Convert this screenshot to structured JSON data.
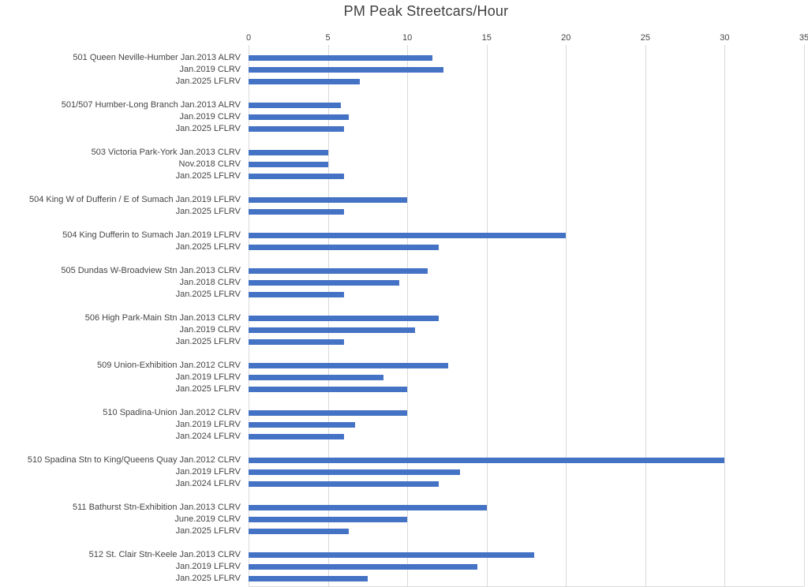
{
  "chart_data": {
    "type": "bar",
    "orientation": "horizontal",
    "title": "PM Peak Streetcars/Hour",
    "xlabel": "",
    "ylabel": "",
    "xlim": [
      0,
      35
    ],
    "xticks": [
      0,
      5,
      10,
      15,
      20,
      25,
      30,
      35
    ],
    "grid": true,
    "legend": "none",
    "bar_color": "#4472C4",
    "gridline_color": "#D9D9D9",
    "text_color": "#444444",
    "groups": [
      {
        "route": "501 Queen Neville-Humber",
        "bars": [
          {
            "label": "501 Queen Neville-Humber Jan.2013 ALRV",
            "value": 11.6
          },
          {
            "label": "Jan.2019 CLRV",
            "value": 12.3
          },
          {
            "label": "Jan.2025 LFLRV",
            "value": 7
          }
        ]
      },
      {
        "route": "501/507 Humber-Long Branch",
        "bars": [
          {
            "label": "501/507 Humber-Long Branch Jan.2013 ALRV",
            "value": 5.8
          },
          {
            "label": "Jan.2019 CLRV",
            "value": 6.3
          },
          {
            "label": "Jan.2025 LFLRV",
            "value": 6
          }
        ]
      },
      {
        "route": "503 Victoria Park-York",
        "bars": [
          {
            "label": "503 Victoria Park-York Jan.2013 CLRV",
            "value": 5
          },
          {
            "label": "Nov.2018 CLRV",
            "value": 5
          },
          {
            "label": "Jan.2025 LFLRV",
            "value": 6
          }
        ]
      },
      {
        "route": "504 King W of Dufferin / E of Sumach",
        "bars": [
          {
            "label": "504 King W of Dufferin / E of Sumach Jan.2019 LFLRV",
            "value": 10
          },
          {
            "label": "Jan.2025 LFLRV",
            "value": 6
          }
        ]
      },
      {
        "route": "504 King Dufferin to Sumach",
        "bars": [
          {
            "label": "504 King Dufferin to Sumach Jan.2019 LFLRV",
            "value": 20
          },
          {
            "label": "Jan.2025 LFLRV",
            "value": 12
          }
        ]
      },
      {
        "route": "505 Dundas W-Broadview Stn",
        "bars": [
          {
            "label": "505 Dundas W-Broadview Stn Jan.2013 CLRV",
            "value": 11.3
          },
          {
            "label": "Jan.2018 CLRV",
            "value": 9.5
          },
          {
            "label": "Jan.2025 LFLRV",
            "value": 6
          }
        ]
      },
      {
        "route": "506 High Park-Main Stn",
        "bars": [
          {
            "label": "506 High Park-Main Stn Jan.2013 CLRV",
            "value": 12
          },
          {
            "label": "Jan.2019 CLRV",
            "value": 10.5
          },
          {
            "label": "Jan.2025 LFLRV",
            "value": 6
          }
        ]
      },
      {
        "route": "509 Union-Exhibition",
        "bars": [
          {
            "label": "509 Union-Exhibition Jan.2012 CLRV",
            "value": 12.6
          },
          {
            "label": "Jan.2019 LFLRV",
            "value": 8.5
          },
          {
            "label": "Jan.2025 LFLRV",
            "value": 10
          }
        ]
      },
      {
        "route": "510 Spadina-Union",
        "bars": [
          {
            "label": "510 Spadina-Union Jan.2012 CLRV",
            "value": 10
          },
          {
            "label": "Jan.2019 LFLRV",
            "value": 6.7
          },
          {
            "label": "Jan.2024 LFLRV",
            "value": 6
          }
        ]
      },
      {
        "route": "510 Spadina Stn to King/Queens Quay",
        "bars": [
          {
            "label": "510 Spadina Stn to King/Queens Quay Jan.2012 CLRV",
            "value": 30
          },
          {
            "label": "Jan.2019 LFLRV",
            "value": 13.3
          },
          {
            "label": "Jan.2024 LFLRV",
            "value": 12
          }
        ]
      },
      {
        "route": "511 Bathurst Stn-Exhibition",
        "bars": [
          {
            "label": "511 Bathurst Stn-Exhibition Jan.2013 CLRV",
            "value": 15
          },
          {
            "label": "June.2019 CLRV",
            "value": 10
          },
          {
            "label": "Jan.2025 LFLRV",
            "value": 6.3
          }
        ]
      },
      {
        "route": "512 St. Clair Stn-Keele",
        "bars": [
          {
            "label": "512 St. Clair Stn-Keele Jan.2013 CLRV",
            "value": 18
          },
          {
            "label": "Jan.2019 LFLRV",
            "value": 14.4
          },
          {
            "label": "Jan.2025 LFLRV",
            "value": 7.5
          }
        ]
      }
    ]
  }
}
